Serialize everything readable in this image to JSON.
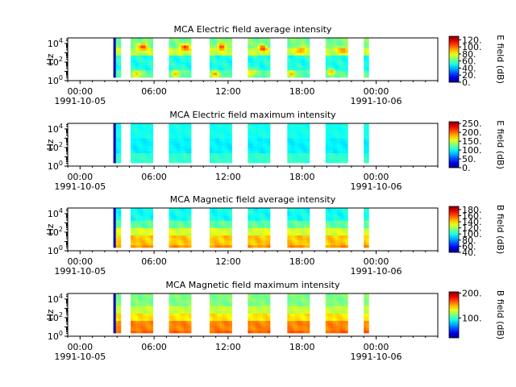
{
  "time_axis": {
    "range_hours": [
      -1,
      29
    ],
    "ticks": [
      {
        "hour": 0,
        "label": "00:00",
        "date": "1991-10-05"
      },
      {
        "hour": 6,
        "label": "06:00",
        "date": ""
      },
      {
        "hour": 12,
        "label": "12:00",
        "date": ""
      },
      {
        "hour": 18,
        "label": "18:00",
        "date": ""
      },
      {
        "hour": 24,
        "label": "00:00",
        "date": "1991-10-06"
      }
    ],
    "minor_step_hours": 1
  },
  "data_segments_hours": [
    [
      2.7,
      3.3
    ],
    [
      4.1,
      5.9
    ],
    [
      7.2,
      9.0
    ],
    [
      10.5,
      12.3
    ],
    [
      13.6,
      15.4
    ],
    [
      16.8,
      18.6
    ],
    [
      19.9,
      21.7
    ],
    [
      23.0,
      23.4
    ]
  ],
  "chart_data": [
    {
      "type": "heatmap",
      "title": "MCA  Electric field average intensity",
      "ylabel": "Hz",
      "yscale": "log",
      "ylim_exp": [
        0,
        4.6
      ],
      "yticks": [
        {
          "exp": 0,
          "label": "10^0"
        },
        {
          "exp": 2,
          "label": "10^2"
        },
        {
          "exp": 4,
          "label": "10^4"
        }
      ],
      "colorbar": {
        "label": "E field (dB)",
        "range": [
          0,
          130
        ],
        "ticks": [
          0,
          20,
          40,
          60,
          80,
          100,
          120
        ],
        "tick_labels": [
          "0.",
          "20.",
          "40.",
          "60.",
          "80.",
          "100.",
          "120."
        ]
      },
      "base_level": 48,
      "bands": [
        [
          0,
          1.2,
          60
        ],
        [
          1.2,
          2.8,
          52
        ],
        [
          2.8,
          3.6,
          74
        ],
        [
          3.6,
          4.6,
          64
        ]
      ],
      "hot_spots": [
        [
          5.1,
          3.7,
          110
        ],
        [
          8.5,
          3.6,
          112
        ],
        [
          11.5,
          3.7,
          108
        ],
        [
          14.8,
          3.5,
          104
        ],
        [
          17.9,
          3.3,
          100
        ],
        [
          21.3,
          3.3,
          98
        ],
        [
          4.6,
          0.7,
          92
        ],
        [
          7.8,
          0.8,
          90
        ],
        [
          10.9,
          0.7,
          94
        ],
        [
          13.9,
          0.9,
          92
        ],
        [
          17.2,
          0.8,
          88
        ],
        [
          20.3,
          0.9,
          88
        ]
      ],
      "edge_color": "#0000e0"
    },
    {
      "type": "heatmap",
      "title": "MCA  Electric field maximum intensity",
      "ylabel": "Hz",
      "yscale": "log",
      "ylim_exp": [
        0,
        4.6
      ],
      "yticks": [
        {
          "exp": 0,
          "label": "10^0"
        },
        {
          "exp": 2,
          "label": "10^2"
        },
        {
          "exp": 4,
          "label": "10^4"
        }
      ],
      "colorbar": {
        "label": "E field (dB)",
        "range": [
          0,
          260
        ],
        "ticks": [
          0,
          50,
          100,
          150,
          200,
          250
        ],
        "tick_labels": [
          "0.",
          "50.",
          "100.",
          "150.",
          "200.",
          "250."
        ]
      },
      "base_level": 100,
      "bands": [
        [
          0,
          1.5,
          110
        ],
        [
          1.5,
          3.0,
          95
        ],
        [
          3.0,
          4.6,
          102
        ]
      ],
      "hot_spots": [],
      "edge_color": "#0000b0"
    },
    {
      "type": "heatmap",
      "title": "MCA  Magnetic field average intensity",
      "ylabel": "Hz",
      "yscale": "log",
      "ylim_exp": [
        0,
        4.6
      ],
      "yticks": [
        {
          "exp": 0,
          "label": "10^0"
        },
        {
          "exp": 2,
          "label": "10^2"
        },
        {
          "exp": 4,
          "label": "10^4"
        }
      ],
      "colorbar": {
        "label": "B field (dB)",
        "range": [
          40,
          190
        ],
        "ticks": [
          40,
          60,
          80,
          100,
          120,
          140,
          160,
          180
        ],
        "tick_labels": [
          "40.",
          "60.",
          "80.",
          "100.",
          "120.",
          "140.",
          "160.",
          "180."
        ]
      },
      "base_level": 105,
      "bands": [
        [
          0,
          0.6,
          150
        ],
        [
          0.6,
          1.6,
          142
        ],
        [
          1.6,
          2.6,
          128
        ],
        [
          2.6,
          3.4,
          110
        ],
        [
          3.4,
          4.6,
          98
        ]
      ],
      "hot_spots": [],
      "edge_color": "#0000c0"
    },
    {
      "type": "heatmap",
      "title": "MCA  Magnetic field maximum intensity",
      "ylabel": "Hz",
      "yscale": "log",
      "ylim_exp": [
        0,
        4.6
      ],
      "yticks": [
        {
          "exp": 0,
          "label": "10^0"
        },
        {
          "exp": 2,
          "label": "10^2"
        },
        {
          "exp": 4,
          "label": "10^4"
        }
      ],
      "colorbar": {
        "label": "B field (dB)",
        "range": [
          20,
          205
        ],
        "ticks": [
          100,
          200
        ],
        "tick_labels": [
          "100.",
          "200."
        ]
      },
      "base_level": 120,
      "bands": [
        [
          0,
          0.6,
          165
        ],
        [
          0.6,
          1.6,
          158
        ],
        [
          1.6,
          2.6,
          140
        ],
        [
          2.6,
          3.4,
          125
        ],
        [
          3.4,
          4.6,
          112
        ]
      ],
      "hot_spots": [],
      "edge_color": "#0000c0"
    }
  ]
}
